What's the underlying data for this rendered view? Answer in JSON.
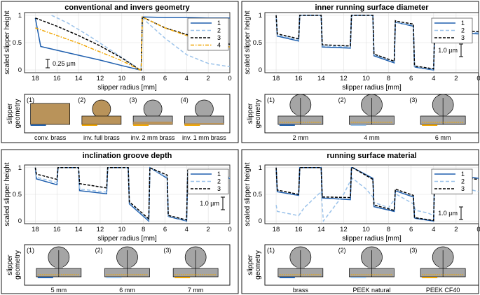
{
  "colors": {
    "s1": "#1f5fae",
    "s2": "#9cc3ea",
    "s3": "#000000",
    "s4": "#f0a500",
    "brass": "#b9935a",
    "gray": "#a5a5a5"
  },
  "chart_data": [
    {
      "type": "line",
      "title": "conventional and invers geometry",
      "xlabel": "slipper radius [mm]",
      "ylabel": "scaled slipper height",
      "xlim": [
        19,
        0
      ],
      "ylim": [
        -0.05,
        1.05
      ],
      "xticks": [
        "18",
        "16",
        "14",
        "12",
        "10",
        "8",
        "6",
        "4",
        "2",
        "0"
      ],
      "yticks": [
        "0",
        "0.5",
        "1"
      ],
      "legend": [
        "1",
        "2",
        "3",
        "4"
      ],
      "scalebar": "0.25 µm",
      "series": [
        {
          "name": "1",
          "x": [
            18,
            17.5,
            16,
            14,
            12,
            10,
            8.3,
            8.2,
            8.1,
            6,
            4,
            2,
            0
          ],
          "y": [
            0.95,
            0.43,
            0.36,
            0.27,
            0.18,
            0.08,
            0.0,
            0.0,
            0.97,
            0.96,
            0.96,
            0.95,
            0.95
          ]
        },
        {
          "name": "2",
          "x": [
            16.5,
            15,
            13,
            11,
            9,
            8.3,
            8.2,
            8.1,
            6,
            4,
            2,
            0
          ],
          "y": [
            1.0,
            0.86,
            0.62,
            0.36,
            0.1,
            0.0,
            0.0,
            0.95,
            0.58,
            0.28,
            0.12,
            0.06
          ]
        },
        {
          "name": "3",
          "x": [
            18,
            16,
            14,
            12,
            10,
            8.3,
            8.2,
            8.1,
            6,
            4,
            2,
            0
          ],
          "y": [
            0.95,
            0.8,
            0.63,
            0.44,
            0.22,
            0.0,
            0.0,
            0.97,
            0.77,
            0.65,
            0.55,
            0.47
          ]
        },
        {
          "name": "4",
          "x": [
            18,
            16,
            14,
            12,
            10,
            8.3,
            8.2,
            8.1,
            6,
            4,
            2,
            0
          ],
          "y": [
            0.77,
            0.63,
            0.49,
            0.33,
            0.17,
            0.0,
            0.0,
            0.97,
            0.77,
            0.63,
            0.53,
            0.42
          ]
        }
      ],
      "geometry": {
        "label": "slipper geometry",
        "items": [
          {
            "num": "(1)",
            "caption": "conv. brass"
          },
          {
            "num": "(2)",
            "caption": "inv. full brass"
          },
          {
            "num": "(3)",
            "caption": "inv. 2 mm brass"
          },
          {
            "num": "(4)",
            "caption": "inv. 1 mm brass"
          }
        ]
      }
    },
    {
      "type": "line",
      "title": "inner running surface diameter",
      "xlabel": "slipper radius [mm]",
      "ylabel": "scaled slipper height",
      "xlim": [
        19,
        0
      ],
      "ylim": [
        -0.05,
        1.05
      ],
      "xticks": [
        "18",
        "16",
        "14",
        "12",
        "10",
        "8",
        "6",
        "4",
        "2",
        "0"
      ],
      "yticks": [
        "0",
        "0.5",
        "1"
      ],
      "legend": [
        "1",
        "2",
        "3"
      ],
      "scalebar": "1.0 µm",
      "series": [
        {
          "name": "1",
          "x": [
            18,
            17.9,
            16,
            15.9,
            15.8,
            14,
            13.9,
            11.4,
            11.3,
            11.2,
            9.4,
            9.3,
            7.5,
            7.4,
            7.3,
            5.8,
            5.7,
            5.6,
            4,
            3.9,
            2,
            1.9,
            0
          ],
          "y": [
            1.0,
            0.62,
            0.53,
            1.0,
            1.0,
            1.0,
            0.42,
            0.4,
            1.0,
            1.0,
            1.0,
            0.26,
            0.13,
            0.88,
            0.87,
            0.8,
            0.06,
            0.05,
            0.0,
            0.72,
            0.72,
            0.68,
            0.66
          ]
        },
        {
          "name": "2",
          "x": [
            18,
            17.9,
            16,
            15.9,
            15.8,
            14,
            13.9,
            11.4,
            11.3,
            11.2,
            9.4,
            9.3,
            7.5,
            7.4,
            7.3,
            5.8,
            5.7,
            5.6,
            4,
            3.9,
            2,
            1.9,
            0
          ],
          "y": [
            1.0,
            0.64,
            0.55,
            1.0,
            1.0,
            1.0,
            0.44,
            0.42,
            1.0,
            1.0,
            1.0,
            0.28,
            0.15,
            0.88,
            0.87,
            0.82,
            0.07,
            0.06,
            0.01,
            0.73,
            0.72,
            0.7,
            0.68
          ]
        },
        {
          "name": "3",
          "x": [
            18,
            17.9,
            16,
            15.9,
            15.8,
            14,
            13.9,
            11.4,
            11.3,
            11.2,
            9.4,
            9.3,
            7.5,
            7.4,
            7.3,
            5.8,
            5.7,
            5.6,
            4,
            3.9,
            2,
            1.9,
            0
          ],
          "y": [
            1.0,
            0.66,
            0.57,
            1.0,
            1.0,
            1.0,
            0.46,
            0.44,
            1.0,
            1.0,
            1.0,
            0.29,
            0.16,
            0.9,
            0.89,
            0.84,
            0.08,
            0.07,
            0.02,
            0.76,
            0.75,
            0.73,
            0.7
          ]
        }
      ],
      "geometry": {
        "label": "slipper geometry",
        "items": [
          {
            "num": "(1)",
            "caption": "2 mm"
          },
          {
            "num": "(2)",
            "caption": "4 mm"
          },
          {
            "num": "(3)",
            "caption": "6 mm"
          }
        ]
      }
    },
    {
      "type": "line",
      "title": "inclination groove depth",
      "xlabel": "slipper radius [mm]",
      "ylabel": "scaled slipper height",
      "xlim": [
        19,
        0
      ],
      "ylim": [
        -0.05,
        1.05
      ],
      "xticks": [
        "18",
        "16",
        "14",
        "12",
        "10",
        "8",
        "6",
        "4",
        "2",
        "0"
      ],
      "yticks": [
        "0",
        "0.5",
        "1"
      ],
      "legend": [
        "1",
        "2",
        "3"
      ],
      "scalebar": "1.0 µm",
      "series": [
        {
          "name": "1",
          "x": [
            18,
            17.9,
            16,
            15.9,
            15.8,
            14,
            13.9,
            11.4,
            11.3,
            11.2,
            9.4,
            9.3,
            7.5,
            7.4,
            7.3,
            5.8,
            5.7,
            5.6,
            4,
            3.9,
            2,
            1.9,
            0
          ],
          "y": [
            1.0,
            0.79,
            0.68,
            1.0,
            1.0,
            1.0,
            0.57,
            0.51,
            1.0,
            1.0,
            1.0,
            0.32,
            0.0,
            1.0,
            0.99,
            0.8,
            0.09,
            0.08,
            0.0,
            0.9,
            0.93,
            0.86,
            0.8
          ]
        },
        {
          "name": "2",
          "x": [
            18,
            17.9,
            16,
            15.9,
            15.8,
            14,
            13.9,
            11.4,
            11.3,
            11.2,
            9.4,
            9.3,
            7.5,
            7.4,
            7.3,
            5.8,
            5.7,
            5.6,
            4,
            3.9,
            2,
            1.9,
            0
          ],
          "y": [
            1.0,
            0.82,
            0.72,
            1.0,
            1.0,
            1.0,
            0.6,
            0.54,
            1.0,
            1.0,
            1.0,
            0.34,
            0.02,
            1.0,
            0.99,
            0.82,
            0.1,
            0.09,
            0.01,
            0.92,
            0.93,
            0.87,
            0.81
          ]
        },
        {
          "name": "3",
          "x": [
            18,
            17.9,
            16,
            15.9,
            15.8,
            14,
            13.9,
            11.4,
            11.3,
            11.2,
            9.4,
            9.3,
            7.5,
            7.4,
            7.3,
            5.8,
            5.7,
            5.6,
            4,
            3.9,
            2,
            1.9,
            0
          ],
          "y": [
            1.0,
            0.88,
            0.78,
            1.0,
            1.0,
            1.0,
            0.7,
            0.62,
            1.0,
            1.0,
            1.0,
            0.36,
            0.04,
            1.0,
            0.99,
            0.86,
            0.11,
            0.1,
            0.02,
            0.95,
            0.94,
            0.88,
            0.82
          ]
        }
      ],
      "geometry": {
        "label": "slipper geometry",
        "items": [
          {
            "num": "(1)",
            "caption": "5 mm"
          },
          {
            "num": "(2)",
            "caption": "6 mm"
          },
          {
            "num": "(3)",
            "caption": "7 mm"
          }
        ]
      }
    },
    {
      "type": "line",
      "title": "running surface material",
      "xlabel": "slipper radius [mm]",
      "ylabel": "scaled slipper height",
      "xlim": [
        19,
        0
      ],
      "ylim": [
        -0.05,
        1.05
      ],
      "xticks": [
        "18",
        "16",
        "14",
        "12",
        "10",
        "8",
        "6",
        "4",
        "2",
        "0"
      ],
      "yticks": [
        "0",
        "0.5",
        "1"
      ],
      "legend": [
        "1",
        "2",
        "3"
      ],
      "scalebar": "1.0 µm",
      "series": [
        {
          "name": "1",
          "x": [
            18,
            17.9,
            16,
            15.9,
            15.8,
            14,
            13.9,
            11.4,
            11.3,
            11.2,
            9.4,
            9.3,
            7.5,
            7.4,
            7.3,
            5.8,
            5.7,
            5.6,
            4,
            3.9,
            2,
            1.9,
            0
          ],
          "y": [
            1.0,
            0.55,
            0.48,
            1.0,
            1.0,
            1.0,
            0.43,
            0.4,
            1.0,
            1.0,
            0.8,
            0.27,
            0.18,
            0.57,
            0.56,
            0.45,
            0.06,
            0.05,
            0.0,
            0.95,
            0.96,
            0.86,
            0.8
          ]
        },
        {
          "name": "2",
          "x": [
            18,
            17.9,
            16,
            15.5,
            14,
            13.8,
            12,
            11.4,
            11.2,
            10,
            9.4,
            9.3,
            8,
            7.5,
            7.3,
            5.8,
            5.6,
            4.5,
            4,
            3.9,
            2,
            1.9,
            0
          ],
          "y": [
            0.3,
            0.18,
            0.1,
            0.25,
            0.55,
            0.0,
            0.5,
            0.75,
            0.8,
            0.6,
            0.45,
            0.35,
            0.25,
            0.4,
            0.5,
            0.32,
            0.2,
            0.15,
            0.1,
            0.6,
            0.7,
            0.65,
            0.55
          ]
        },
        {
          "name": "3",
          "x": [
            18,
            17.9,
            16,
            15.9,
            15.8,
            14,
            13.9,
            11.4,
            11.3,
            11.2,
            9.4,
            9.3,
            7.5,
            7.4,
            7.3,
            5.8,
            5.7,
            5.6,
            4,
            3.9,
            2,
            1.9,
            0
          ],
          "y": [
            1.0,
            0.58,
            0.5,
            1.0,
            1.0,
            1.0,
            0.45,
            0.44,
            1.0,
            1.0,
            0.78,
            0.3,
            0.2,
            0.6,
            0.59,
            0.48,
            0.07,
            0.06,
            0.01,
            0.9,
            0.92,
            0.82,
            0.78
          ]
        }
      ],
      "geometry": {
        "label": "slipper geometry",
        "items": [
          {
            "num": "(1)",
            "caption": "brass"
          },
          {
            "num": "(2)",
            "caption": "PEEK natural"
          },
          {
            "num": "(3)",
            "caption": "PEEK CF40"
          }
        ]
      }
    }
  ]
}
